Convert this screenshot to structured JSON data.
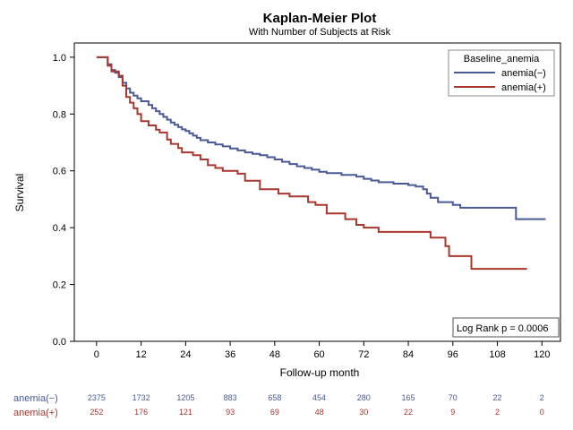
{
  "chart_data": {
    "type": "line",
    "title": "Kaplan-Meier Plot",
    "subtitle": "With Number of Subjects at Risk",
    "xlabel": "Follow-up month",
    "ylabel": "Survival",
    "xlim": [
      -6,
      125
    ],
    "ylim": [
      0,
      1.05
    ],
    "xticks": [
      0,
      12,
      24,
      36,
      48,
      60,
      72,
      84,
      96,
      108,
      120
    ],
    "xtick_labels": [
      "0",
      "12",
      "24",
      "36",
      "48",
      "60",
      "72",
      "84",
      "96",
      "108",
      "120"
    ],
    "yticks": [
      0,
      0.2,
      0.4,
      0.6,
      0.8,
      1.0
    ],
    "ytick_labels": [
      "0.0",
      "0.2",
      "0.4",
      "0.6",
      "0.8",
      "1.0"
    ],
    "legend_title": "Baseline_anemia",
    "annotation": "Log Rank p = 0.0006",
    "series": [
      {
        "name": "anemia(−)",
        "color": "#4a5a96",
        "points": [
          [
            0,
            1.0
          ],
          [
            3,
            1.0
          ],
          [
            3,
            0.975
          ],
          [
            4,
            0.975
          ],
          [
            4,
            0.955
          ],
          [
            5,
            0.955
          ],
          [
            5,
            0.945
          ],
          [
            6,
            0.945
          ],
          [
            6,
            0.93
          ],
          [
            7,
            0.93
          ],
          [
            7,
            0.91
          ],
          [
            8,
            0.91
          ],
          [
            8,
            0.89
          ],
          [
            9,
            0.89
          ],
          [
            9,
            0.875
          ],
          [
            10,
            0.875
          ],
          [
            10,
            0.865
          ],
          [
            11,
            0.865
          ],
          [
            11,
            0.855
          ],
          [
            12,
            0.855
          ],
          [
            12,
            0.845
          ],
          [
            14,
            0.845
          ],
          [
            14,
            0.832
          ],
          [
            15,
            0.832
          ],
          [
            15,
            0.82
          ],
          [
            16,
            0.82
          ],
          [
            16,
            0.81
          ],
          [
            17,
            0.81
          ],
          [
            17,
            0.8
          ],
          [
            18,
            0.8
          ],
          [
            18,
            0.79
          ],
          [
            19,
            0.79
          ],
          [
            19,
            0.78
          ],
          [
            20,
            0.78
          ],
          [
            20,
            0.77
          ],
          [
            21,
            0.77
          ],
          [
            21,
            0.762
          ],
          [
            22,
            0.762
          ],
          [
            22,
            0.754
          ],
          [
            23,
            0.754
          ],
          [
            23,
            0.746
          ],
          [
            24,
            0.746
          ],
          [
            24,
            0.74
          ],
          [
            25,
            0.74
          ],
          [
            25,
            0.732
          ],
          [
            26,
            0.732
          ],
          [
            26,
            0.724
          ],
          [
            27,
            0.724
          ],
          [
            27,
            0.716
          ],
          [
            28,
            0.716
          ],
          [
            28,
            0.708
          ],
          [
            30,
            0.708
          ],
          [
            30,
            0.7
          ],
          [
            32,
            0.7
          ],
          [
            32,
            0.693
          ],
          [
            34,
            0.693
          ],
          [
            34,
            0.686
          ],
          [
            36,
            0.686
          ],
          [
            36,
            0.679
          ],
          [
            38,
            0.679
          ],
          [
            38,
            0.672
          ],
          [
            40,
            0.672
          ],
          [
            40,
            0.665
          ],
          [
            42,
            0.665
          ],
          [
            42,
            0.66
          ],
          [
            44,
            0.66
          ],
          [
            44,
            0.655
          ],
          [
            46,
            0.655
          ],
          [
            46,
            0.648
          ],
          [
            48,
            0.648
          ],
          [
            48,
            0.64
          ],
          [
            50,
            0.64
          ],
          [
            50,
            0.632
          ],
          [
            52,
            0.632
          ],
          [
            52,
            0.624
          ],
          [
            54,
            0.624
          ],
          [
            54,
            0.616
          ],
          [
            56,
            0.616
          ],
          [
            56,
            0.61
          ],
          [
            58,
            0.61
          ],
          [
            58,
            0.604
          ],
          [
            60,
            0.604
          ],
          [
            60,
            0.597
          ],
          [
            62,
            0.597
          ],
          [
            62,
            0.592
          ],
          [
            66,
            0.592
          ],
          [
            66,
            0.586
          ],
          [
            70,
            0.586
          ],
          [
            70,
            0.58
          ],
          [
            72,
            0.58
          ],
          [
            72,
            0.572
          ],
          [
            74,
            0.572
          ],
          [
            74,
            0.566
          ],
          [
            76,
            0.566
          ],
          [
            76,
            0.56
          ],
          [
            80,
            0.56
          ],
          [
            80,
            0.555
          ],
          [
            84,
            0.555
          ],
          [
            84,
            0.55
          ],
          [
            86,
            0.55
          ],
          [
            86,
            0.545
          ],
          [
            88,
            0.545
          ],
          [
            88,
            0.535
          ],
          [
            89,
            0.535
          ],
          [
            89,
            0.52
          ],
          [
            90,
            0.52
          ],
          [
            90,
            0.505
          ],
          [
            92,
            0.505
          ],
          [
            92,
            0.49
          ],
          [
            96,
            0.49
          ],
          [
            96,
            0.48
          ],
          [
            98,
            0.48
          ],
          [
            98,
            0.47
          ],
          [
            113,
            0.47
          ],
          [
            113,
            0.43
          ],
          [
            121,
            0.43
          ]
        ]
      },
      {
        "name": "anemia(+)",
        "color": "#a8372f",
        "points": [
          [
            0,
            1.0
          ],
          [
            3,
            1.0
          ],
          [
            3,
            0.97
          ],
          [
            4,
            0.97
          ],
          [
            4,
            0.95
          ],
          [
            6,
            0.95
          ],
          [
            6,
            0.935
          ],
          [
            7,
            0.935
          ],
          [
            7,
            0.9
          ],
          [
            8,
            0.9
          ],
          [
            8,
            0.86
          ],
          [
            9,
            0.86
          ],
          [
            9,
            0.84
          ],
          [
            10,
            0.84
          ],
          [
            10,
            0.82
          ],
          [
            11,
            0.82
          ],
          [
            11,
            0.8
          ],
          [
            12,
            0.8
          ],
          [
            12,
            0.775
          ],
          [
            14,
            0.775
          ],
          [
            14,
            0.76
          ],
          [
            16,
            0.76
          ],
          [
            16,
            0.745
          ],
          [
            17,
            0.745
          ],
          [
            17,
            0.735
          ],
          [
            19,
            0.735
          ],
          [
            19,
            0.71
          ],
          [
            20,
            0.71
          ],
          [
            20,
            0.695
          ],
          [
            22,
            0.695
          ],
          [
            22,
            0.68
          ],
          [
            23,
            0.68
          ],
          [
            23,
            0.665
          ],
          [
            26,
            0.665
          ],
          [
            26,
            0.655
          ],
          [
            28,
            0.655
          ],
          [
            28,
            0.64
          ],
          [
            30,
            0.64
          ],
          [
            30,
            0.62
          ],
          [
            32,
            0.62
          ],
          [
            32,
            0.61
          ],
          [
            34,
            0.61
          ],
          [
            34,
            0.6
          ],
          [
            38,
            0.6
          ],
          [
            38,
            0.59
          ],
          [
            40,
            0.59
          ],
          [
            40,
            0.565
          ],
          [
            44,
            0.565
          ],
          [
            44,
            0.535
          ],
          [
            49,
            0.535
          ],
          [
            49,
            0.52
          ],
          [
            52,
            0.52
          ],
          [
            52,
            0.51
          ],
          [
            57,
            0.51
          ],
          [
            57,
            0.49
          ],
          [
            59,
            0.49
          ],
          [
            59,
            0.48
          ],
          [
            62,
            0.48
          ],
          [
            62,
            0.45
          ],
          [
            67,
            0.45
          ],
          [
            67,
            0.43
          ],
          [
            70,
            0.43
          ],
          [
            70,
            0.41
          ],
          [
            72,
            0.41
          ],
          [
            72,
            0.4
          ],
          [
            76,
            0.4
          ],
          [
            76,
            0.385
          ],
          [
            90,
            0.385
          ],
          [
            90,
            0.365
          ],
          [
            94,
            0.365
          ],
          [
            94,
            0.335
          ],
          [
            95,
            0.335
          ],
          [
            95,
            0.3
          ],
          [
            101,
            0.3
          ],
          [
            101,
            0.255
          ],
          [
            116,
            0.255
          ]
        ]
      }
    ],
    "risk_table": {
      "times": [
        0,
        12,
        24,
        36,
        48,
        60,
        72,
        84,
        96,
        108,
        120
      ],
      "rows": [
        {
          "label": "anemia(−)",
          "color": "#4a5a96",
          "values": [
            "2375",
            "1732",
            "1205",
            "883",
            "658",
            "454",
            "280",
            "165",
            "70",
            "22",
            "2"
          ]
        },
        {
          "label": "anemia(+)",
          "color": "#a8372f",
          "values": [
            "252",
            "176",
            "121",
            "93",
            "69",
            "48",
            "30",
            "22",
            "9",
            "2",
            "0"
          ]
        }
      ]
    }
  }
}
